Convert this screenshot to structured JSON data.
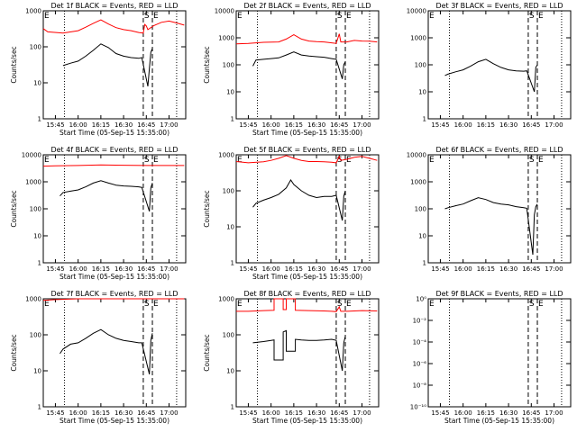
{
  "figure": {
    "background": "#ffffff",
    "colors": {
      "events": "#000000",
      "lld": "#ff0000",
      "axes": "#000000"
    }
  },
  "chart_data": [
    {
      "type": "line",
      "title": "Det 1f BLACK = Events, RED = LLD",
      "xlabel": "Start Time (05-Sep-15 15:35:00)",
      "ylabel": "Counts/sec",
      "yscale": "log",
      "ylim": [
        1,
        1000
      ],
      "ytick_labels": [
        "1",
        "10",
        "100",
        "1000"
      ],
      "xlim": [
        "15:37",
        "17:11"
      ],
      "xtick_labels": [
        "15:45",
        "16:00",
        "16:15",
        "16:30",
        "16:45",
        "17:00"
      ],
      "markers": {
        "S": "16:43",
        "E": "16:49"
      },
      "dotted_lines": [
        "15:51",
        "17:05"
      ],
      "grid": false,
      "legend": "none",
      "series": [
        {
          "name": "LLD",
          "color": "#ff0000",
          "x": [
            "15:35",
            "15:40",
            "15:50",
            "16:00",
            "16:05",
            "16:10",
            "16:15",
            "16:20",
            "16:25",
            "16:30",
            "16:35",
            "16:40",
            "16:43",
            "16:44",
            "16:45",
            "16:46",
            "16:50",
            "16:55",
            "17:00",
            "17:05",
            "17:10"
          ],
          "y": [
            320,
            260,
            240,
            280,
            350,
            450,
            560,
            430,
            340,
            300,
            280,
            250,
            240,
            420,
            380,
            300,
            390,
            480,
            520,
            460,
            400
          ]
        },
        {
          "name": "Events",
          "color": "#000000",
          "x": [
            "15:50",
            "15:55",
            "16:00",
            "16:05",
            "16:10",
            "16:15",
            "16:20",
            "16:25",
            "16:30",
            "16:35",
            "16:40",
            "16:42",
            "16:46",
            "16:47",
            "16:48",
            "16:49"
          ],
          "y": [
            30,
            35,
            40,
            55,
            80,
            120,
            95,
            65,
            55,
            50,
            48,
            50,
            8,
            25,
            70,
            90
          ]
        }
      ]
    },
    {
      "type": "line",
      "title": "Det 2f BLACK = Events, RED = LLD",
      "xlabel": "Start Time (05-Sep-15 15:35:00)",
      "ylabel": "Counts/sec",
      "yscale": "log",
      "ylim": [
        1,
        10000
      ],
      "ytick_labels": [
        "1",
        "10",
        "100",
        "1000",
        "10000"
      ],
      "xlim": [
        "15:37",
        "17:11"
      ],
      "xtick_labels": [
        "15:45",
        "16:00",
        "16:15",
        "16:30",
        "16:45",
        "17:00"
      ],
      "markers": {
        "S": "16:43",
        "E": "16:49"
      },
      "dotted_lines": [
        "15:51",
        "17:05"
      ],
      "grid": false,
      "legend": "none",
      "series": [
        {
          "name": "LLD",
          "color": "#ff0000",
          "x": [
            "15:35",
            "15:45",
            "15:55",
            "16:05",
            "16:10",
            "16:15",
            "16:20",
            "16:25",
            "16:30",
            "16:35",
            "16:40",
            "16:43",
            "16:45",
            "16:46",
            "16:50",
            "16:55",
            "17:00",
            "17:05",
            "17:10"
          ],
          "y": [
            600,
            620,
            680,
            700,
            900,
            1300,
            900,
            760,
            720,
            700,
            650,
            620,
            1400,
            700,
            700,
            800,
            760,
            750,
            700
          ]
        },
        {
          "name": "Events",
          "color": "#000000",
          "x": [
            "15:48",
            "15:50",
            "15:55",
            "16:00",
            "16:05",
            "16:10",
            "16:15",
            "16:20",
            "16:25",
            "16:30",
            "16:35",
            "16:40",
            "16:43",
            "16:47",
            "16:48",
            "16:49"
          ],
          "y": [
            90,
            150,
            160,
            170,
            180,
            230,
            300,
            230,
            210,
            200,
            190,
            170,
            160,
            30,
            100,
            130
          ]
        }
      ]
    },
    {
      "type": "line",
      "title": "Det 3f BLACK = Events, RED = LLD",
      "xlabel": "",
      "ylabel": "",
      "yscale": "log",
      "ylim": [
        1,
        10000
      ],
      "ytick_labels": [
        "1",
        "10",
        "100",
        "1000",
        "10000"
      ],
      "xlim": [
        "15:37",
        "17:11"
      ],
      "xtick_labels": [
        "15:45",
        "16:00",
        "16:15",
        "16:30",
        "16:45",
        "17:00"
      ],
      "markers": {
        "S": "16:43",
        "E": "16:49"
      },
      "dotted_lines": [
        "15:51",
        "17:05"
      ],
      "grid": false,
      "legend": "none",
      "series": [
        {
          "name": "Events",
          "color": "#000000",
          "x": [
            "15:48",
            "15:50",
            "15:55",
            "16:00",
            "16:05",
            "16:10",
            "16:15",
            "16:20",
            "16:25",
            "16:30",
            "16:35",
            "16:40",
            "16:42",
            "16:47",
            "16:48",
            "16:49"
          ],
          "y": [
            40,
            45,
            55,
            65,
            90,
            130,
            160,
            110,
            80,
            65,
            60,
            58,
            60,
            10,
            80,
            100
          ]
        }
      ]
    },
    {
      "type": "line",
      "title": "Det 4f BLACK = Events, RED = LLD",
      "xlabel": "Start Time (05-Sep-15 15:35:00)",
      "ylabel": "Counts/sec",
      "yscale": "log",
      "ylim": [
        1,
        10000
      ],
      "ytick_labels": [
        "1",
        "10",
        "100",
        "1000",
        "10000"
      ],
      "xlim": [
        "15:37",
        "17:11"
      ],
      "xtick_labels": [
        "15:45",
        "16:00",
        "16:15",
        "16:30",
        "16:45",
        "17:00"
      ],
      "markers": {
        "S": "16:43",
        "E": "16:49"
      },
      "dotted_lines": [
        "15:51",
        "17:05"
      ],
      "grid": false,
      "legend": "none",
      "series": [
        {
          "name": "LLD",
          "color": "#ff0000",
          "x": [
            "15:35",
            "15:45",
            "16:00",
            "16:15",
            "16:30",
            "16:45",
            "17:00",
            "17:10"
          ],
          "y": [
            3800,
            3900,
            4000,
            4200,
            4100,
            4000,
            4000,
            4000
          ]
        },
        {
          "name": "Events",
          "color": "#000000",
          "x": [
            "15:48",
            "15:50",
            "15:55",
            "16:00",
            "16:05",
            "16:10",
            "16:15",
            "16:20",
            "16:25",
            "16:30",
            "16:35",
            "16:40",
            "16:42",
            "16:47",
            "16:48",
            "16:49"
          ],
          "y": [
            300,
            400,
            450,
            500,
            650,
            900,
            1100,
            900,
            750,
            700,
            680,
            650,
            620,
            80,
            600,
            900
          ]
        }
      ]
    },
    {
      "type": "line",
      "title": "Det 5f BLACK = Events, RED = LLD",
      "xlabel": "Start Time (05-Sep-15 15:35:00)",
      "ylabel": "Counts/sec",
      "yscale": "log",
      "ylim": [
        1,
        1000
      ],
      "ytick_labels": [
        "1",
        "10",
        "100",
        "1000"
      ],
      "xlim": [
        "15:37",
        "17:11"
      ],
      "xtick_labels": [
        "15:45",
        "16:00",
        "16:15",
        "16:30",
        "16:45",
        "17:00"
      ],
      "markers": {
        "S": "16:43",
        "E": "16:49"
      },
      "dotted_lines": [
        "15:51",
        "17:05"
      ],
      "grid": false,
      "legend": "none",
      "series": [
        {
          "name": "LLD",
          "color": "#ff0000",
          "x": [
            "15:35",
            "15:45",
            "15:55",
            "16:00",
            "16:05",
            "16:10",
            "16:15",
            "16:20",
            "16:25",
            "16:30",
            "16:35",
            "16:40",
            "16:43",
            "16:45",
            "16:46",
            "16:50",
            "16:55",
            "17:00",
            "17:05",
            "17:10"
          ],
          "y": [
            650,
            600,
            640,
            700,
            800,
            950,
            800,
            700,
            650,
            650,
            640,
            620,
            600,
            900,
            700,
            750,
            850,
            900,
            800,
            700
          ]
        },
        {
          "name": "Events",
          "color": "#000000",
          "x": [
            "15:48",
            "15:50",
            "15:55",
            "16:00",
            "16:05",
            "16:10",
            "16:13",
            "16:15",
            "16:20",
            "16:25",
            "16:30",
            "16:35",
            "16:40",
            "16:43",
            "16:47",
            "16:48",
            "16:49"
          ],
          "y": [
            35,
            45,
            55,
            65,
            80,
            120,
            200,
            150,
            100,
            75,
            65,
            70,
            70,
            75,
            15,
            70,
            100
          ]
        }
      ]
    },
    {
      "type": "line",
      "title": "Det 6f BLACK = Events, RED = LLD",
      "xlabel": "",
      "ylabel": "",
      "yscale": "log",
      "ylim": [
        1,
        10000
      ],
      "ytick_labels": [
        "1",
        "10",
        "100",
        "1000",
        "10000"
      ],
      "xlim": [
        "15:37",
        "17:11"
      ],
      "xtick_labels": [
        "15:45",
        "16:00",
        "16:15",
        "16:30",
        "16:45",
        "17:00"
      ],
      "markers": {
        "S": "16:43",
        "E": "16:49"
      },
      "dotted_lines": [
        "15:51",
        "17:05"
      ],
      "grid": false,
      "legend": "none",
      "series": [
        {
          "name": "Events",
          "color": "#000000",
          "x": [
            "15:48",
            "15:50",
            "15:55",
            "16:00",
            "16:05",
            "16:10",
            "16:15",
            "16:20",
            "16:25",
            "16:30",
            "16:35",
            "16:40",
            "16:42",
            "16:46",
            "16:47",
            "16:48",
            "16:49"
          ],
          "y": [
            100,
            110,
            130,
            150,
            200,
            260,
            220,
            170,
            150,
            140,
            120,
            110,
            105,
            2,
            60,
            120,
            150
          ]
        }
      ]
    },
    {
      "type": "line",
      "title": "Det 7f BLACK = Events, RED = LLD",
      "xlabel": "Start Time (05-Sep-15 15:35:00)",
      "ylabel": "Counts/sec",
      "yscale": "log",
      "ylim": [
        1,
        1000
      ],
      "ytick_labels": [
        "1",
        "10",
        "100",
        "1000"
      ],
      "xlim": [
        "15:37",
        "17:11"
      ],
      "xtick_labels": [
        "15:45",
        "16:00",
        "16:15",
        "16:30",
        "16:45",
        "17:00"
      ],
      "markers": {
        "S": "16:43",
        "E": "16:49"
      },
      "dotted_lines": [
        "15:51",
        "17:05"
      ],
      "grid": false,
      "legend": "none",
      "series": [
        {
          "name": "LLD",
          "color": "#ff0000",
          "x": [
            "15:35",
            "15:45",
            "16:00",
            "16:10",
            "16:15",
            "16:20",
            "16:30",
            "16:40",
            "16:45",
            "16:50",
            "17:00",
            "17:10"
          ],
          "y": [
            900,
            950,
            1000,
            1050,
            1100,
            1050,
            1000,
            1000,
            1050,
            1000,
            1100,
            1200
          ]
        },
        {
          "name": "Events",
          "color": "#000000",
          "x": [
            "15:48",
            "15:50",
            "15:55",
            "16:00",
            "16:05",
            "16:10",
            "16:15",
            "16:20",
            "16:25",
            "16:30",
            "16:35",
            "16:40",
            "16:42",
            "16:47",
            "16:48",
            "16:49"
          ],
          "y": [
            30,
            40,
            55,
            60,
            80,
            110,
            140,
            100,
            80,
            70,
            65,
            60,
            60,
            8,
            70,
            110
          ]
        }
      ]
    },
    {
      "type": "line",
      "title": "Det 8f BLACK = Events, RED = LLD",
      "xlabel": "Start Time (05-Sep-15 15:35:00)",
      "ylabel": "Counts/sec",
      "yscale": "log",
      "ylim": [
        1,
        1000
      ],
      "ytick_labels": [
        "1",
        "10",
        "100",
        "1000"
      ],
      "xlim": [
        "15:37",
        "17:11"
      ],
      "xtick_labels": [
        "15:45",
        "16:00",
        "16:15",
        "16:30",
        "16:45",
        "17:00"
      ],
      "markers": {
        "S": "16:43",
        "E": "16:49"
      },
      "dotted_lines": [
        "15:51",
        "17:05"
      ],
      "grid": false,
      "legend": "none",
      "series": [
        {
          "name": "LLD",
          "color": "#ff0000",
          "x": [
            "15:35",
            "15:45",
            "15:55",
            "16:02",
            "16:02",
            "16:08",
            "16:08",
            "16:10",
            "16:10",
            "16:16",
            "16:16",
            "16:25",
            "16:35",
            "16:40",
            "16:43",
            "16:45",
            "16:46",
            "16:50",
            "17:00",
            "17:10"
          ],
          "y": [
            450,
            450,
            470,
            480,
            1000,
            1000,
            500,
            500,
            1000,
            1000,
            480,
            470,
            460,
            450,
            440,
            600,
            450,
            450,
            470,
            460
          ]
        },
        {
          "name": "Events",
          "color": "#000000",
          "x": [
            "15:48",
            "15:55",
            "16:00",
            "16:02",
            "16:02",
            "16:08",
            "16:08",
            "16:10",
            "16:10",
            "16:16",
            "16:16",
            "16:20",
            "16:25",
            "16:30",
            "16:35",
            "16:40",
            "16:43",
            "16:47",
            "16:48",
            "16:49"
          ],
          "y": [
            60,
            65,
            70,
            72,
            20,
            20,
            120,
            130,
            35,
            35,
            75,
            72,
            70,
            70,
            72,
            75,
            70,
            10,
            60,
            90
          ]
        }
      ]
    },
    {
      "type": "line",
      "title": "Det 9f BLACK = Events, RED = LLD",
      "xlabel": "Start Time (05-Sep-15 15:35:00)",
      "ylabel": "",
      "yscale": "log",
      "ylim": [
        1e-10,
        1
      ],
      "ytick_labels": [
        "10⁰",
        "10⁻²",
        "10⁻⁴",
        "10⁻⁶",
        "10⁻⁸",
        "10⁻¹⁰"
      ],
      "xlim": [
        "15:37",
        "17:11"
      ],
      "xtick_labels": [
        "15:45",
        "16:00",
        "16:15",
        "16:30",
        "16:45",
        "17:00"
      ],
      "markers": {
        "S": "16:43",
        "E": "16:49"
      },
      "dotted_lines": [
        "15:51",
        "17:05"
      ],
      "grid": false,
      "legend": "none",
      "series": []
    }
  ]
}
